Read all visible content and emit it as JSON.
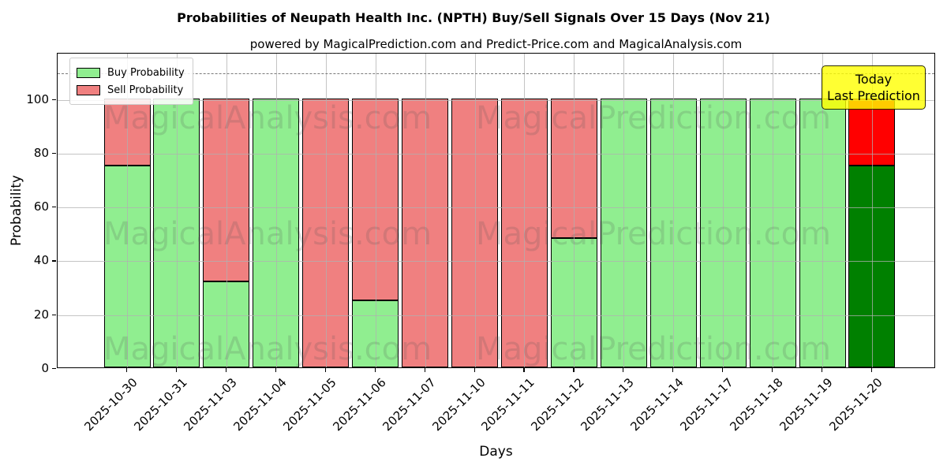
{
  "header": {
    "title": "Probabilities of Neupath Health Inc. (NPTH) Buy/Sell Signals Over 15 Days (Nov 21)",
    "subtitle": "powered by MagicalPrediction.com and Predict-Price.com and MagicalAnalysis.com"
  },
  "axes": {
    "x_label": "Days",
    "y_label": "Probability",
    "y_ticks": [
      0,
      20,
      40,
      60,
      80,
      100
    ],
    "ylim": [
      0,
      117
    ],
    "dashed_line_y": 110,
    "grid_color": "#b0b0b0"
  },
  "legend": {
    "items": [
      {
        "label": "Buy Probability",
        "color": "#90EE90"
      },
      {
        "label": "Sell Probability",
        "color": "#F08080"
      }
    ]
  },
  "annotation_box": {
    "line1": "Today",
    "line2": "Last Prediction",
    "bg_color": "#FFFF00"
  },
  "watermarks": {
    "left_text": "MagicalAnalysis.com",
    "right_text": "MagicalPrediction.com"
  },
  "chart_data": {
    "type": "bar",
    "stacked": true,
    "title": "Probabilities of Neupath Health Inc. (NPTH) Buy/Sell Signals Over 15 Days (Nov 21)",
    "xlabel": "Days",
    "ylabel": "Probability",
    "ylim": [
      0,
      117
    ],
    "grid": true,
    "legend_position": "upper left",
    "categories": [
      "2025-10-30",
      "2025-10-31",
      "2025-11-03",
      "2025-11-04",
      "2025-11-05",
      "2025-11-06",
      "2025-11-07",
      "2025-11-10",
      "2025-11-11",
      "2025-11-12",
      "2025-11-13",
      "2025-11-14",
      "2025-11-17",
      "2025-11-18",
      "2025-11-19",
      "2025-11-20"
    ],
    "series": [
      {
        "name": "Buy Probability",
        "color": "#90EE90",
        "values": [
          75,
          100,
          32,
          100,
          0,
          25,
          0,
          0,
          0,
          48,
          100,
          100,
          100,
          100,
          100,
          75
        ]
      },
      {
        "name": "Sell Probability",
        "color": "#F08080",
        "values": [
          25,
          0,
          68,
          0,
          100,
          75,
          100,
          100,
          100,
          52,
          0,
          0,
          0,
          0,
          0,
          25
        ]
      }
    ],
    "highlight_last_bar": {
      "buy_color": "#008000",
      "sell_color": "#FF0000"
    }
  }
}
